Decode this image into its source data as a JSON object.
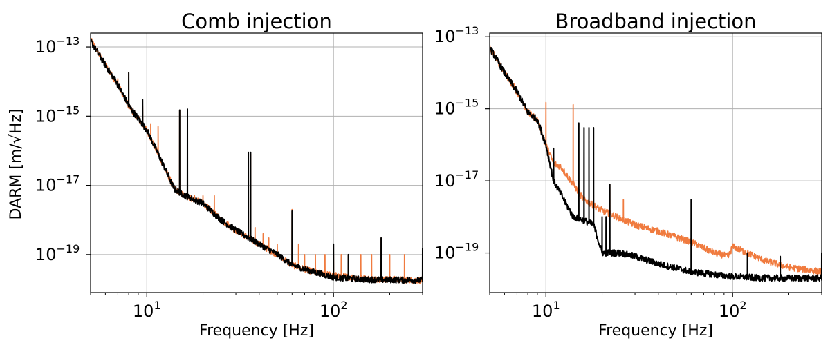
{
  "figure": {
    "ylabel_prefix": "DARM",
    "ylabel_unit": "m/√Hz",
    "colors": {
      "injection": "#f07b3f",
      "reference": "#000000",
      "grid": "#b0b0b0"
    }
  },
  "chart_data": [
    {
      "type": "line",
      "title": "Comb injection",
      "xlabel": "Frequency [Hz]",
      "ylabel": "DARM [m/√Hz]",
      "xscale": "log",
      "yscale": "log",
      "xlim": [
        5,
        300
      ],
      "ylim_exp": [
        -20.1,
        -12.6
      ],
      "grid": true,
      "xticks": [
        {
          "base": "10",
          "exp": "1",
          "value": 10
        },
        {
          "base": "10",
          "exp": "2",
          "value": 100
        }
      ],
      "yticks": [
        {
          "base": "10",
          "exp": "−13",
          "value": -13
        },
        {
          "base": "10",
          "exp": "−15",
          "value": -15
        },
        {
          "base": "10",
          "exp": "−17",
          "value": -17
        },
        {
          "base": "10",
          "exp": "−19",
          "value": -19
        }
      ],
      "series": [
        {
          "color": "#f07b3f",
          "baseline": [
            [
              5,
              1.6e-13
            ],
            [
              6,
              3e-14
            ],
            [
              7,
              8e-15
            ],
            [
              8,
              2e-15
            ],
            [
              10,
              4e-16
            ],
            [
              12,
              5e-17
            ],
            [
              14,
              8e-18
            ],
            [
              16,
              5e-18
            ],
            [
              20,
              3e-18
            ],
            [
              25,
              1e-18
            ],
            [
              30,
              5e-19
            ],
            [
              40,
              2e-19
            ],
            [
              50,
              1e-19
            ],
            [
              60,
              5e-20
            ],
            [
              80,
              3e-20
            ],
            [
              100,
              2.5e-20
            ],
            [
              150,
              2e-20
            ],
            [
              300,
              1.8e-20
            ]
          ],
          "peaks": [
            [
              7,
              1.2e-14
            ],
            [
              8,
              1.8e-14
            ],
            [
              9.5,
              2e-15
            ],
            [
              10.5,
              6e-16
            ],
            [
              11.5,
              5e-16
            ],
            [
              14,
              1e-17
            ],
            [
              15,
              1.5e-15
            ],
            [
              16.5,
              1.5e-15
            ],
            [
              18,
              5e-18
            ],
            [
              20,
              5e-18
            ],
            [
              23,
              5e-18
            ],
            [
              35,
              8e-17
            ],
            [
              36,
              8e-17
            ],
            [
              38,
              6e-19
            ],
            [
              42,
              4e-19
            ],
            [
              45,
              3e-19
            ],
            [
              50,
              2e-19
            ],
            [
              60,
              2e-18
            ],
            [
              65,
              2e-19
            ],
            [
              70,
              1e-19
            ],
            [
              80,
              1e-19
            ],
            [
              90,
              1e-19
            ],
            [
              100,
              1e-19
            ],
            [
              110,
              1e-19
            ],
            [
              120,
              1e-19
            ],
            [
              140,
              1e-19
            ],
            [
              160,
              1e-19
            ],
            [
              180,
              3e-19
            ],
            [
              200,
              1e-19
            ],
            [
              240,
              1e-19
            ]
          ]
        },
        {
          "color": "#000000",
          "baseline": [
            [
              5,
              1.5e-13
            ],
            [
              6,
              3e-14
            ],
            [
              7,
              8e-15
            ],
            [
              8,
              2e-15
            ],
            [
              10,
              4e-16
            ],
            [
              12,
              5e-17
            ],
            [
              14,
              8e-18
            ],
            [
              16,
              5e-18
            ],
            [
              20,
              3e-18
            ],
            [
              25,
              1e-18
            ],
            [
              30,
              5e-19
            ],
            [
              40,
              2e-19
            ],
            [
              50,
              1e-19
            ],
            [
              60,
              5e-20
            ],
            [
              80,
              3e-20
            ],
            [
              100,
              2.2e-20
            ],
            [
              150,
              1.9e-20
            ],
            [
              300,
              1.8e-20
            ]
          ],
          "peaks": [
            [
              8,
              1.8e-14
            ],
            [
              9.5,
              3e-15
            ],
            [
              14,
              1e-17
            ],
            [
              15,
              1.5e-15
            ],
            [
              16.5,
              1.6e-15
            ],
            [
              35,
              9e-17
            ],
            [
              36,
              9e-17
            ],
            [
              60,
              1.8e-18
            ],
            [
              100,
              2e-19
            ],
            [
              120,
              1e-19
            ],
            [
              180,
              3e-19
            ],
            [
              300,
              1.5e-19
            ]
          ]
        }
      ]
    },
    {
      "type": "line",
      "title": "Broadband injection",
      "xlabel": "Frequency [Hz]",
      "ylabel": "",
      "xscale": "log",
      "yscale": "log",
      "xlim": [
        5,
        300
      ],
      "ylim_exp": [
        -20.1,
        -12.9
      ],
      "grid": true,
      "xticks": [
        {
          "base": "10",
          "exp": "1",
          "value": 10
        },
        {
          "base": "10",
          "exp": "2",
          "value": 100
        }
      ],
      "yticks": [
        {
          "base": "10",
          "exp": "−13",
          "value": -13
        },
        {
          "base": "10",
          "exp": "−15",
          "value": -15
        },
        {
          "base": "10",
          "exp": "−17",
          "value": -17
        },
        {
          "base": "10",
          "exp": "−19",
          "value": -19
        }
      ],
      "series": [
        {
          "color": "#f07b3f",
          "baseline": [
            [
              5,
              5e-14
            ],
            [
              6,
              1e-14
            ],
            [
              7,
              3e-15
            ],
            [
              8,
              8e-16
            ],
            [
              9,
              5e-16
            ],
            [
              10,
              1e-16
            ],
            [
              11,
              3e-17
            ],
            [
              12,
              2.5e-17
            ],
            [
              14,
              8e-18
            ],
            [
              16,
              3e-18
            ],
            [
              20,
              1.5e-18
            ],
            [
              25,
              9e-19
            ],
            [
              30,
              6e-19
            ],
            [
              40,
              4e-19
            ],
            [
              60,
              2e-19
            ],
            [
              80,
              1e-19
            ],
            [
              95,
              8e-20
            ],
            [
              100,
              1.5e-19
            ],
            [
              120,
              1e-19
            ],
            [
              150,
              6e-20
            ],
            [
              200,
              4e-20
            ],
            [
              300,
              3e-20
            ]
          ],
          "peaks": [
            [
              10,
              1.5e-15
            ],
            [
              14,
              1.3e-15
            ],
            [
              22,
              8e-18
            ],
            [
              26,
              3e-18
            ],
            [
              120,
              9e-20
            ]
          ]
        },
        {
          "color": "#000000",
          "baseline": [
            [
              5,
              5e-14
            ],
            [
              6,
              1e-14
            ],
            [
              7,
              3e-15
            ],
            [
              8,
              8e-16
            ],
            [
              9,
              5e-16
            ],
            [
              10,
              1e-16
            ],
            [
              11,
              1e-17
            ],
            [
              14,
              1e-18
            ],
            [
              16,
              8e-19
            ],
            [
              18,
              6e-19
            ],
            [
              20,
              1e-19
            ],
            [
              25,
              1e-19
            ],
            [
              30,
              8e-20
            ],
            [
              40,
              5e-20
            ],
            [
              60,
              3e-20
            ],
            [
              80,
              2.5e-20
            ],
            [
              100,
              2.2e-20
            ],
            [
              150,
              2e-20
            ],
            [
              300,
              2e-20
            ]
          ],
          "peaks": [
            [
              9,
              5e-16
            ],
            [
              11,
              8e-17
            ],
            [
              15,
              4e-16
            ],
            [
              16,
              3e-16
            ],
            [
              17,
              3e-16
            ],
            [
              18,
              3e-16
            ],
            [
              20,
              1e-18
            ],
            [
              21,
              1e-18
            ],
            [
              22,
              8e-18
            ],
            [
              60,
              3e-18
            ],
            [
              120,
              1e-19
            ],
            [
              180,
              8e-20
            ],
            [
              300,
              1e-19
            ]
          ]
        }
      ]
    }
  ]
}
